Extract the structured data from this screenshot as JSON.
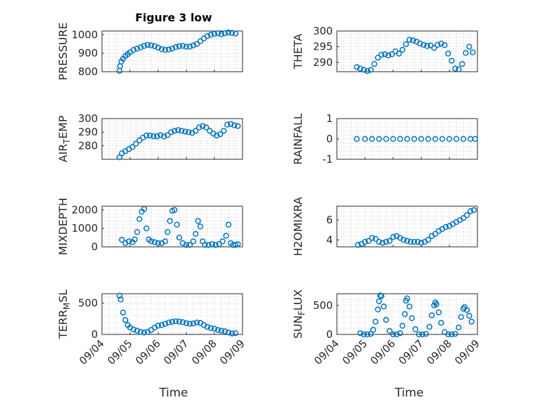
{
  "figure": {
    "title": "Figure 3 low",
    "xlabel": "Time",
    "marker_color": "#0072BD",
    "date_ticks": [
      "09/04",
      "09/05",
      "09/06",
      "09/07",
      "09/08",
      "09/09"
    ]
  },
  "chart_data": [
    {
      "type": "scatter",
      "ylabel": "PRESSURE",
      "ylim": [
        800,
        1020
      ],
      "yticks": [
        800,
        900,
        1000
      ],
      "xlim": [
        "09/04",
        "09/09"
      ],
      "grid": true,
      "series": [
        {
          "x": [
            "09/04 15:00",
            "09/04 15:30",
            "09/04 16:30",
            "09/04 18:00",
            "09/04 20:00",
            "09/04 22:00",
            "09/05 00:00",
            "09/05 03:00",
            "09/05 06:00",
            "09/05 09:00",
            "09/05 12:00",
            "09/05 15:00",
            "09/05 18:00",
            "09/05 21:00",
            "09/06 00:00",
            "09/06 03:00",
            "09/06 06:00",
            "09/06 09:00",
            "09/06 12:00",
            "09/06 15:00",
            "09/06 18:00",
            "09/06 21:00",
            "09/07 00:00",
            "09/07 03:00",
            "09/07 06:00",
            "09/07 09:00",
            "09/07 12:00",
            "09/07 15:00",
            "09/07 18:00",
            "09/07 21:00",
            "09/08 00:00",
            "09/08 03:00",
            "09/08 06:00",
            "09/08 09:00",
            "09/08 12:00",
            "09/08 15:00",
            "09/08 18:00"
          ],
          "y": [
            805,
            830,
            855,
            870,
            885,
            895,
            905,
            918,
            925,
            932,
            940,
            945,
            942,
            938,
            930,
            922,
            918,
            920,
            925,
            933,
            938,
            940,
            935,
            936,
            942,
            950,
            965,
            980,
            993,
            1000,
            1005,
            1008,
            1003,
            1008,
            1012,
            1010,
            1006
          ]
        }
      ]
    },
    {
      "type": "scatter",
      "ylabel": "THETA",
      "ylim": [
        287,
        300
      ],
      "yticks": [
        290,
        295,
        300
      ],
      "xlim": [
        "09/04",
        "09/09"
      ],
      "grid": true,
      "series": [
        {
          "x": [
            "09/04 17:00",
            "09/04 20:00",
            "09/04 23:00",
            "09/05 02:00",
            "09/05 05:00",
            "09/05 08:00",
            "09/05 11:00",
            "09/05 14:00",
            "09/05 17:00",
            "09/05 20:00",
            "09/05 23:00",
            "09/06 02:00",
            "09/06 05:00",
            "09/06 08:00",
            "09/06 11:00",
            "09/06 14:00",
            "09/06 17:00",
            "09/06 20:00",
            "09/06 23:00",
            "09/07 02:00",
            "09/07 05:00",
            "09/07 08:00",
            "09/07 11:00",
            "09/07 14:00",
            "09/07 17:00",
            "09/07 20:00",
            "09/07 23:00",
            "09/08 02:00",
            "09/08 05:00",
            "09/08 08:00",
            "09/08 11:00",
            "09/08 14:00",
            "09/08 17:00",
            "09/08 20:00"
          ],
          "y": [
            288.5,
            288.0,
            287.6,
            287.2,
            287.6,
            289.5,
            291.5,
            292.4,
            292.6,
            292.2,
            292.6,
            293.5,
            292.8,
            294.0,
            295.8,
            297.2,
            297.0,
            296.6,
            296.0,
            295.6,
            295.2,
            295.4,
            294.6,
            295.6,
            296.0,
            295.5,
            292.8,
            290.5,
            288.0,
            287.8,
            289.5,
            293.0,
            295.0,
            293.2
          ]
        }
      ]
    },
    {
      "type": "scatter",
      "ylabel": "AIR_TEMP",
      "ylim": [
        270,
        300
      ],
      "yticks": [
        280,
        290,
        300
      ],
      "xlim": [
        "09/04",
        "09/09"
      ],
      "grid": true,
      "series": [
        {
          "x": [
            "09/04 15:00",
            "09/04 17:00",
            "09/04 20:00",
            "09/04 23:00",
            "09/05 02:00",
            "09/05 05:00",
            "09/05 08:00",
            "09/05 11:00",
            "09/05 14:00",
            "09/05 17:00",
            "09/05 20:00",
            "09/05 23:00",
            "09/06 02:00",
            "09/06 05:00",
            "09/06 08:00",
            "09/06 11:00",
            "09/06 14:00",
            "09/06 17:00",
            "09/06 20:00",
            "09/06 23:00",
            "09/07 02:00",
            "09/07 05:00",
            "09/07 08:00",
            "09/07 11:00",
            "09/07 14:00",
            "09/07 17:00",
            "09/07 20:00",
            "09/07 23:00",
            "09/08 02:00",
            "09/08 05:00",
            "09/08 08:00",
            "09/08 11:00",
            "09/08 14:00",
            "09/08 17:00",
            "09/08 20:00"
          ],
          "y": [
            271.5,
            274.5,
            276.0,
            277.5,
            279.0,
            281.5,
            284.0,
            286.0,
            287.5,
            287.5,
            287.0,
            287.0,
            287.8,
            286.8,
            287.8,
            290.0,
            291.0,
            291.5,
            291.0,
            290.5,
            290.0,
            289.5,
            291.0,
            293.5,
            294.5,
            293.5,
            291.0,
            289.0,
            287.5,
            288.5,
            291.0,
            295.5,
            296.0,
            295.0,
            294.5
          ]
        }
      ]
    },
    {
      "type": "scatter",
      "ylabel": "RAINFALL",
      "ylim": [
        -1,
        1
      ],
      "yticks": [
        -1,
        0,
        1
      ],
      "xlim": [
        "09/04",
        "09/09"
      ],
      "grid": true,
      "series": [
        {
          "x": [
            "09/04 17:00",
            "09/05 00:00",
            "09/05 06:00",
            "09/05 12:00",
            "09/05 18:00",
            "09/06 00:00",
            "09/06 06:00",
            "09/06 12:00",
            "09/06 18:00",
            "09/07 00:00",
            "09/07 06:00",
            "09/07 12:00",
            "09/07 18:00",
            "09/08 00:00",
            "09/08 06:00",
            "09/08 12:00",
            "09/08 18:00",
            "09/08 22:00"
          ],
          "y": [
            0,
            0,
            0,
            0,
            0,
            0,
            0,
            0,
            0,
            0,
            0,
            0,
            0,
            0,
            0,
            0,
            0,
            0
          ]
        }
      ]
    },
    {
      "type": "scatter",
      "ylabel": "MIXDEPTH",
      "ylim": [
        0,
        2200
      ],
      "yticks": [
        0,
        1000,
        2000
      ],
      "xlim": [
        "09/04",
        "09/09"
      ],
      "grid": true,
      "series": [
        {
          "x": [
            "09/04 17:00",
            "09/04 20:00",
            "09/04 23:00",
            "09/05 02:00",
            "09/05 04:00",
            "09/05 06:00",
            "09/05 08:00",
            "09/05 10:00",
            "09/05 12:00",
            "09/05 14:00",
            "09/05 16:00",
            "09/05 18:00",
            "09/05 21:00",
            "09/06 00:00",
            "09/06 03:00",
            "09/06 06:00",
            "09/06 08:00",
            "09/06 10:00",
            "09/06 12:00",
            "09/06 14:00",
            "09/06 16:00",
            "09/06 18:00",
            "09/06 21:00",
            "09/07 00:00",
            "09/07 03:00",
            "09/07 06:00",
            "09/07 08:00",
            "09/07 10:00",
            "09/07 12:00",
            "09/07 14:00",
            "09/07 16:00",
            "09/07 19:00",
            "09/07 22:00",
            "09/08 01:00",
            "09/08 04:00",
            "09/08 07:00",
            "09/08 10:00",
            "09/08 12:00",
            "09/08 14:00",
            "09/08 16:00",
            "09/08 18:00",
            "09/08 20:00"
          ],
          "y": [
            380,
            200,
            300,
            250,
            400,
            800,
            1500,
            1900,
            2050,
            1000,
            400,
            300,
            250,
            200,
            200,
            300,
            800,
            1400,
            1950,
            2000,
            1200,
            500,
            200,
            100,
            100,
            300,
            700,
            1400,
            1100,
            300,
            100,
            100,
            150,
            100,
            150,
            300,
            600,
            1200,
            200,
            100,
            100,
            150
          ]
        }
      ]
    },
    {
      "type": "scatter",
      "ylabel": "H2OMIXRA",
      "ylim": [
        3.3,
        7.4
      ],
      "yticks": [
        4,
        6
      ],
      "xlim": [
        "09/04",
        "09/09"
      ],
      "grid": true,
      "series": [
        {
          "x": [
            "09/04 18:00",
            "09/04 21:00",
            "09/05 00:00",
            "09/05 03:00",
            "09/05 06:00",
            "09/05 09:00",
            "09/05 12:00",
            "09/05 15:00",
            "09/05 18:00",
            "09/05 21:00",
            "09/06 00:00",
            "09/06 03:00",
            "09/06 06:00",
            "09/06 09:00",
            "09/06 12:00",
            "09/06 15:00",
            "09/06 18:00",
            "09/06 21:00",
            "09/07 00:00",
            "09/07 03:00",
            "09/07 06:00",
            "09/07 09:00",
            "09/07 12:00",
            "09/07 15:00",
            "09/07 18:00",
            "09/07 21:00",
            "09/08 00:00",
            "09/08 03:00",
            "09/08 06:00",
            "09/08 09:00",
            "09/08 12:00",
            "09/08 15:00",
            "09/08 18:00",
            "09/08 21:00"
          ],
          "y": [
            3.5,
            3.6,
            3.8,
            3.9,
            4.2,
            4.1,
            3.8,
            3.7,
            3.8,
            3.9,
            4.3,
            4.4,
            4.2,
            4.0,
            3.9,
            3.8,
            3.8,
            3.8,
            3.7,
            3.8,
            4.0,
            4.4,
            4.6,
            4.9,
            5.1,
            5.3,
            5.4,
            5.6,
            5.8,
            6.0,
            6.2,
            6.5,
            6.9,
            7.0
          ]
        }
      ]
    },
    {
      "type": "scatter",
      "ylabel": "TERR_MSL",
      "ylim": [
        0,
        650
      ],
      "yticks": [
        0,
        500
      ],
      "xlim": [
        "09/04",
        "09/09"
      ],
      "grid": true,
      "series": [
        {
          "x": [
            "09/04 15:00",
            "09/04 16:00",
            "09/04 18:00",
            "09/04 20:00",
            "09/04 22:00",
            "09/05 00:00",
            "09/05 03:00",
            "09/05 06:00",
            "09/05 09:00",
            "09/05 12:00",
            "09/05 15:00",
            "09/05 18:00",
            "09/05 21:00",
            "09/06 00:00",
            "09/06 03:00",
            "09/06 06:00",
            "09/06 09:00",
            "09/06 12:00",
            "09/06 15:00",
            "09/06 18:00",
            "09/06 21:00",
            "09/07 00:00",
            "09/07 03:00",
            "09/07 06:00",
            "09/07 09:00",
            "09/07 12:00",
            "09/07 15:00",
            "09/07 18:00",
            "09/07 21:00",
            "09/08 00:00",
            "09/08 03:00",
            "09/08 06:00",
            "09/08 09:00",
            "09/08 12:00",
            "09/08 15:00",
            "09/08 18:00"
          ],
          "y": [
            620,
            560,
            350,
            230,
            150,
            110,
            80,
            60,
            40,
            30,
            40,
            70,
            110,
            140,
            150,
            170,
            190,
            200,
            210,
            205,
            195,
            180,
            170,
            175,
            190,
            185,
            150,
            120,
            100,
            90,
            70,
            60,
            50,
            30,
            15,
            20
          ]
        }
      ]
    },
    {
      "type": "scatter",
      "ylabel": "SUN_FLUX",
      "ylim": [
        0,
        700
      ],
      "yticks": [
        0,
        500
      ],
      "xlim": [
        "09/04",
        "09/09"
      ],
      "grid": true,
      "series": [
        {
          "x": [
            "09/04 20:00",
            "09/04 23:00",
            "09/05 02:00",
            "09/05 05:00",
            "09/05 07:00",
            "09/05 09:00",
            "09/05 11:00",
            "09/05 12:00",
            "09/05 13:00",
            "09/05 14:00",
            "09/05 16:00",
            "09/05 18:00",
            "09/05 21:00",
            "09/06 00:00",
            "09/06 03:00",
            "09/06 06:00",
            "09/06 08:00",
            "09/06 10:00",
            "09/06 11:00",
            "09/06 12:00",
            "09/06 14:00",
            "09/06 16:00",
            "09/06 19:00",
            "09/06 22:00",
            "09/07 01:00",
            "09/07 04:00",
            "09/07 07:00",
            "09/07 09:00",
            "09/07 11:00",
            "09/07 12:00",
            "09/07 13:00",
            "09/07 15:00",
            "09/07 17:00",
            "09/07 20:00",
            "09/07 23:00",
            "09/08 02:00",
            "09/08 05:00",
            "09/08 08:00",
            "09/08 10:00",
            "09/08 12:00",
            "09/08 13:00",
            "09/08 15:00",
            "09/08 17:00",
            "09/08 19:00"
          ],
          "y": [
            20,
            0,
            0,
            10,
            80,
            220,
            430,
            570,
            670,
            660,
            480,
            250,
            60,
            0,
            0,
            20,
            150,
            350,
            580,
            620,
            480,
            280,
            90,
            0,
            0,
            10,
            130,
            330,
            500,
            550,
            520,
            380,
            200,
            40,
            0,
            0,
            10,
            120,
            300,
            440,
            470,
            420,
            320,
            220
          ]
        }
      ]
    }
  ]
}
